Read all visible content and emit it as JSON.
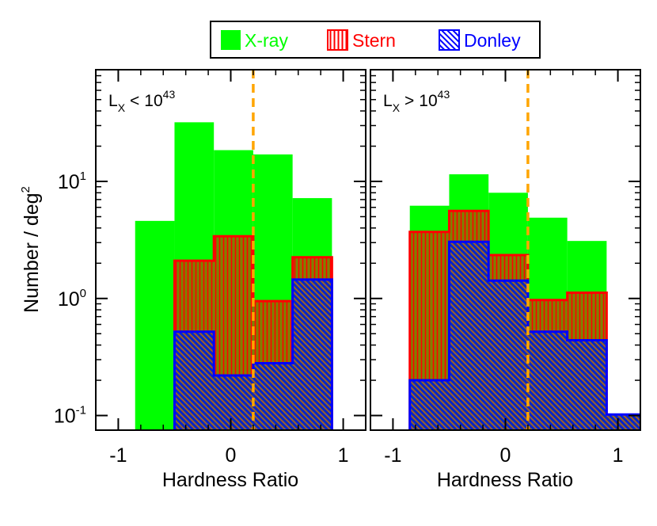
{
  "legend": {
    "items": [
      {
        "label": "X-ray",
        "color": "#00ff00",
        "pattern": "solid"
      },
      {
        "label": "Stern",
        "color": "#ff0000",
        "pattern": "vertical-hatch"
      },
      {
        "label": "Donley",
        "color": "#0000ff",
        "pattern": "diagonal-hatch"
      }
    ],
    "placement": "top-center"
  },
  "colors": {
    "xray": "#00ff00",
    "stern": "#ff0000",
    "donley": "#0000ff",
    "hatch_fill": "#808000",
    "threshold_line": "#ffa500"
  },
  "chart_data": [
    {
      "type": "bar",
      "panel": "left",
      "annotation": {
        "prefix": "L",
        "sub": "X",
        "relation": "<",
        "base": "10",
        "exp": "43"
      },
      "xlabel": "Hardness Ratio",
      "ylabel": {
        "text": "Number / deg",
        "sup": "2"
      },
      "xlim": [
        -1.2,
        1.2
      ],
      "ylim": [
        0.075,
        90
      ],
      "log_y": true,
      "xticks": [
        -1,
        0,
        1
      ],
      "xtick_labels": [
        "-1",
        "0",
        "1"
      ],
      "yticks": [
        0.1,
        1,
        10
      ],
      "ytick_labels": [
        {
          "base": "10",
          "exp": "-1"
        },
        {
          "base": "10",
          "exp": "0"
        },
        {
          "base": "10",
          "exp": "1"
        }
      ],
      "vline": {
        "x": 0.2,
        "style": "dashed"
      },
      "bin_edges": [
        -0.85,
        -0.5,
        -0.15,
        0.2,
        0.55,
        0.9
      ],
      "series": [
        {
          "name": "X-ray",
          "values": [
            4.6,
            32,
            18.5,
            17,
            7.2
          ]
        },
        {
          "name": "Stern",
          "values": [
            0,
            2.1,
            3.4,
            0.95,
            2.25
          ]
        },
        {
          "name": "Donley",
          "values": [
            0,
            0.52,
            0.22,
            0.28,
            1.45
          ]
        }
      ]
    },
    {
      "type": "bar",
      "panel": "right",
      "annotation": {
        "prefix": "L",
        "sub": "X",
        "relation": ">",
        "base": "10",
        "exp": "43"
      },
      "xlabel": "Hardness Ratio",
      "xlim": [
        -1.2,
        1.2
      ],
      "ylim": [
        0.075,
        90
      ],
      "log_y": true,
      "xticks": [
        -1,
        0,
        1
      ],
      "xtick_labels": [
        "-1",
        "0",
        "1"
      ],
      "vline": {
        "x": 0.2,
        "style": "dashed"
      },
      "bin_edges": [
        -0.85,
        -0.5,
        -0.15,
        0.2,
        0.55,
        0.9,
        1.25
      ],
      "series": [
        {
          "name": "X-ray",
          "values": [
            6.2,
            11.5,
            8,
            4.9,
            3.1,
            0
          ]
        },
        {
          "name": "Stern",
          "values": [
            3.7,
            5.6,
            2.35,
            0.97,
            1.12,
            0
          ]
        },
        {
          "name": "Donley",
          "values": [
            0.2,
            3.05,
            1.42,
            0.52,
            0.44,
            0.102
          ]
        }
      ]
    }
  ]
}
